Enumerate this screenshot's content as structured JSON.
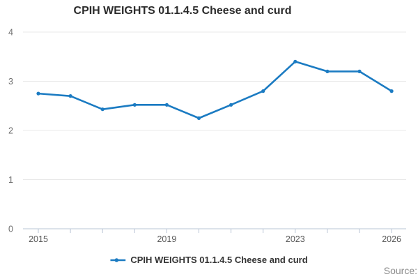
{
  "title": "CPIH WEIGHTS 01.1.4.5 Cheese and curd",
  "legend": {
    "label": "CPIH WEIGHTS 01.1.4.5 Cheese and curd"
  },
  "source_label": "Source:",
  "colors": {
    "line": "#1b7bc2",
    "grid": "#e8e8e8",
    "axis": "#bac5d6",
    "title_text": "#2b2b2b",
    "ytick_text": "#6b6b6b",
    "xtick_text": "#585858",
    "source_text": "#8a8a8a"
  },
  "chart_data": {
    "type": "line",
    "title": "CPIH WEIGHTS 01.1.4.5 Cheese and curd",
    "x": [
      2015,
      2016,
      2017,
      2018,
      2019,
      2020,
      2021,
      2022,
      2023,
      2024,
      2025,
      2026
    ],
    "series": [
      {
        "name": "CPIH WEIGHTS 01.1.4.5 Cheese and curd",
        "values": [
          2.75,
          2.7,
          2.43,
          2.52,
          2.52,
          2.25,
          2.52,
          2.8,
          3.4,
          3.2,
          3.2,
          2.8
        ]
      }
    ],
    "xlabel": "",
    "ylabel": "",
    "ylim": [
      0,
      4
    ],
    "yticks": [
      0,
      1,
      2,
      3,
      4
    ],
    "xtick_labels": [
      2015,
      2019,
      2023,
      2026
    ],
    "grid": "horizontal",
    "legend_position": "bottom",
    "marker": "circle"
  }
}
